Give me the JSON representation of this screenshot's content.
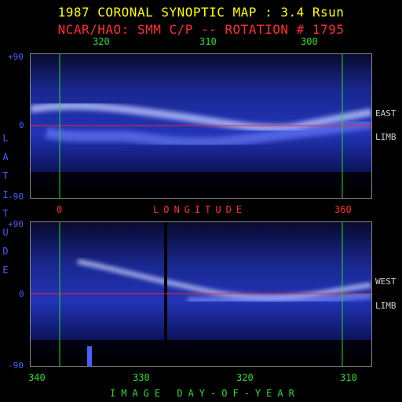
{
  "title": "1987 CORONAL SYNOPTIC MAP : 3.4 Rsun",
  "subtitle": "NCAR/HAO: SMM C/P -- ROTATION # 1795",
  "top_axis_ticks": [
    "320",
    "310",
    "300"
  ],
  "lat_ticks": [
    "+90",
    "0",
    "-90"
  ],
  "lower_lat_ticks": [
    "+90",
    "0",
    "-90"
  ],
  "east_label": [
    "EAST",
    "LIMB"
  ],
  "west_label": [
    "WEST",
    "LIMB"
  ],
  "latitude_letters": [
    "L",
    "A",
    "T",
    "I",
    "T",
    "U",
    "D",
    "E"
  ],
  "longitude_ticks": [
    "0",
    "360"
  ],
  "longitude_label": "LONGITUDE",
  "bottom_axis_ticks": [
    "340",
    "330",
    "320",
    "310"
  ],
  "doy_label": "IMAGE DAY-OF-YEAR",
  "colors": {
    "title": "#ffff00",
    "subtitle": "#ff3030",
    "ticks": "#2fdc2f",
    "equator": "#ff2020",
    "marker": "#20e020"
  }
}
